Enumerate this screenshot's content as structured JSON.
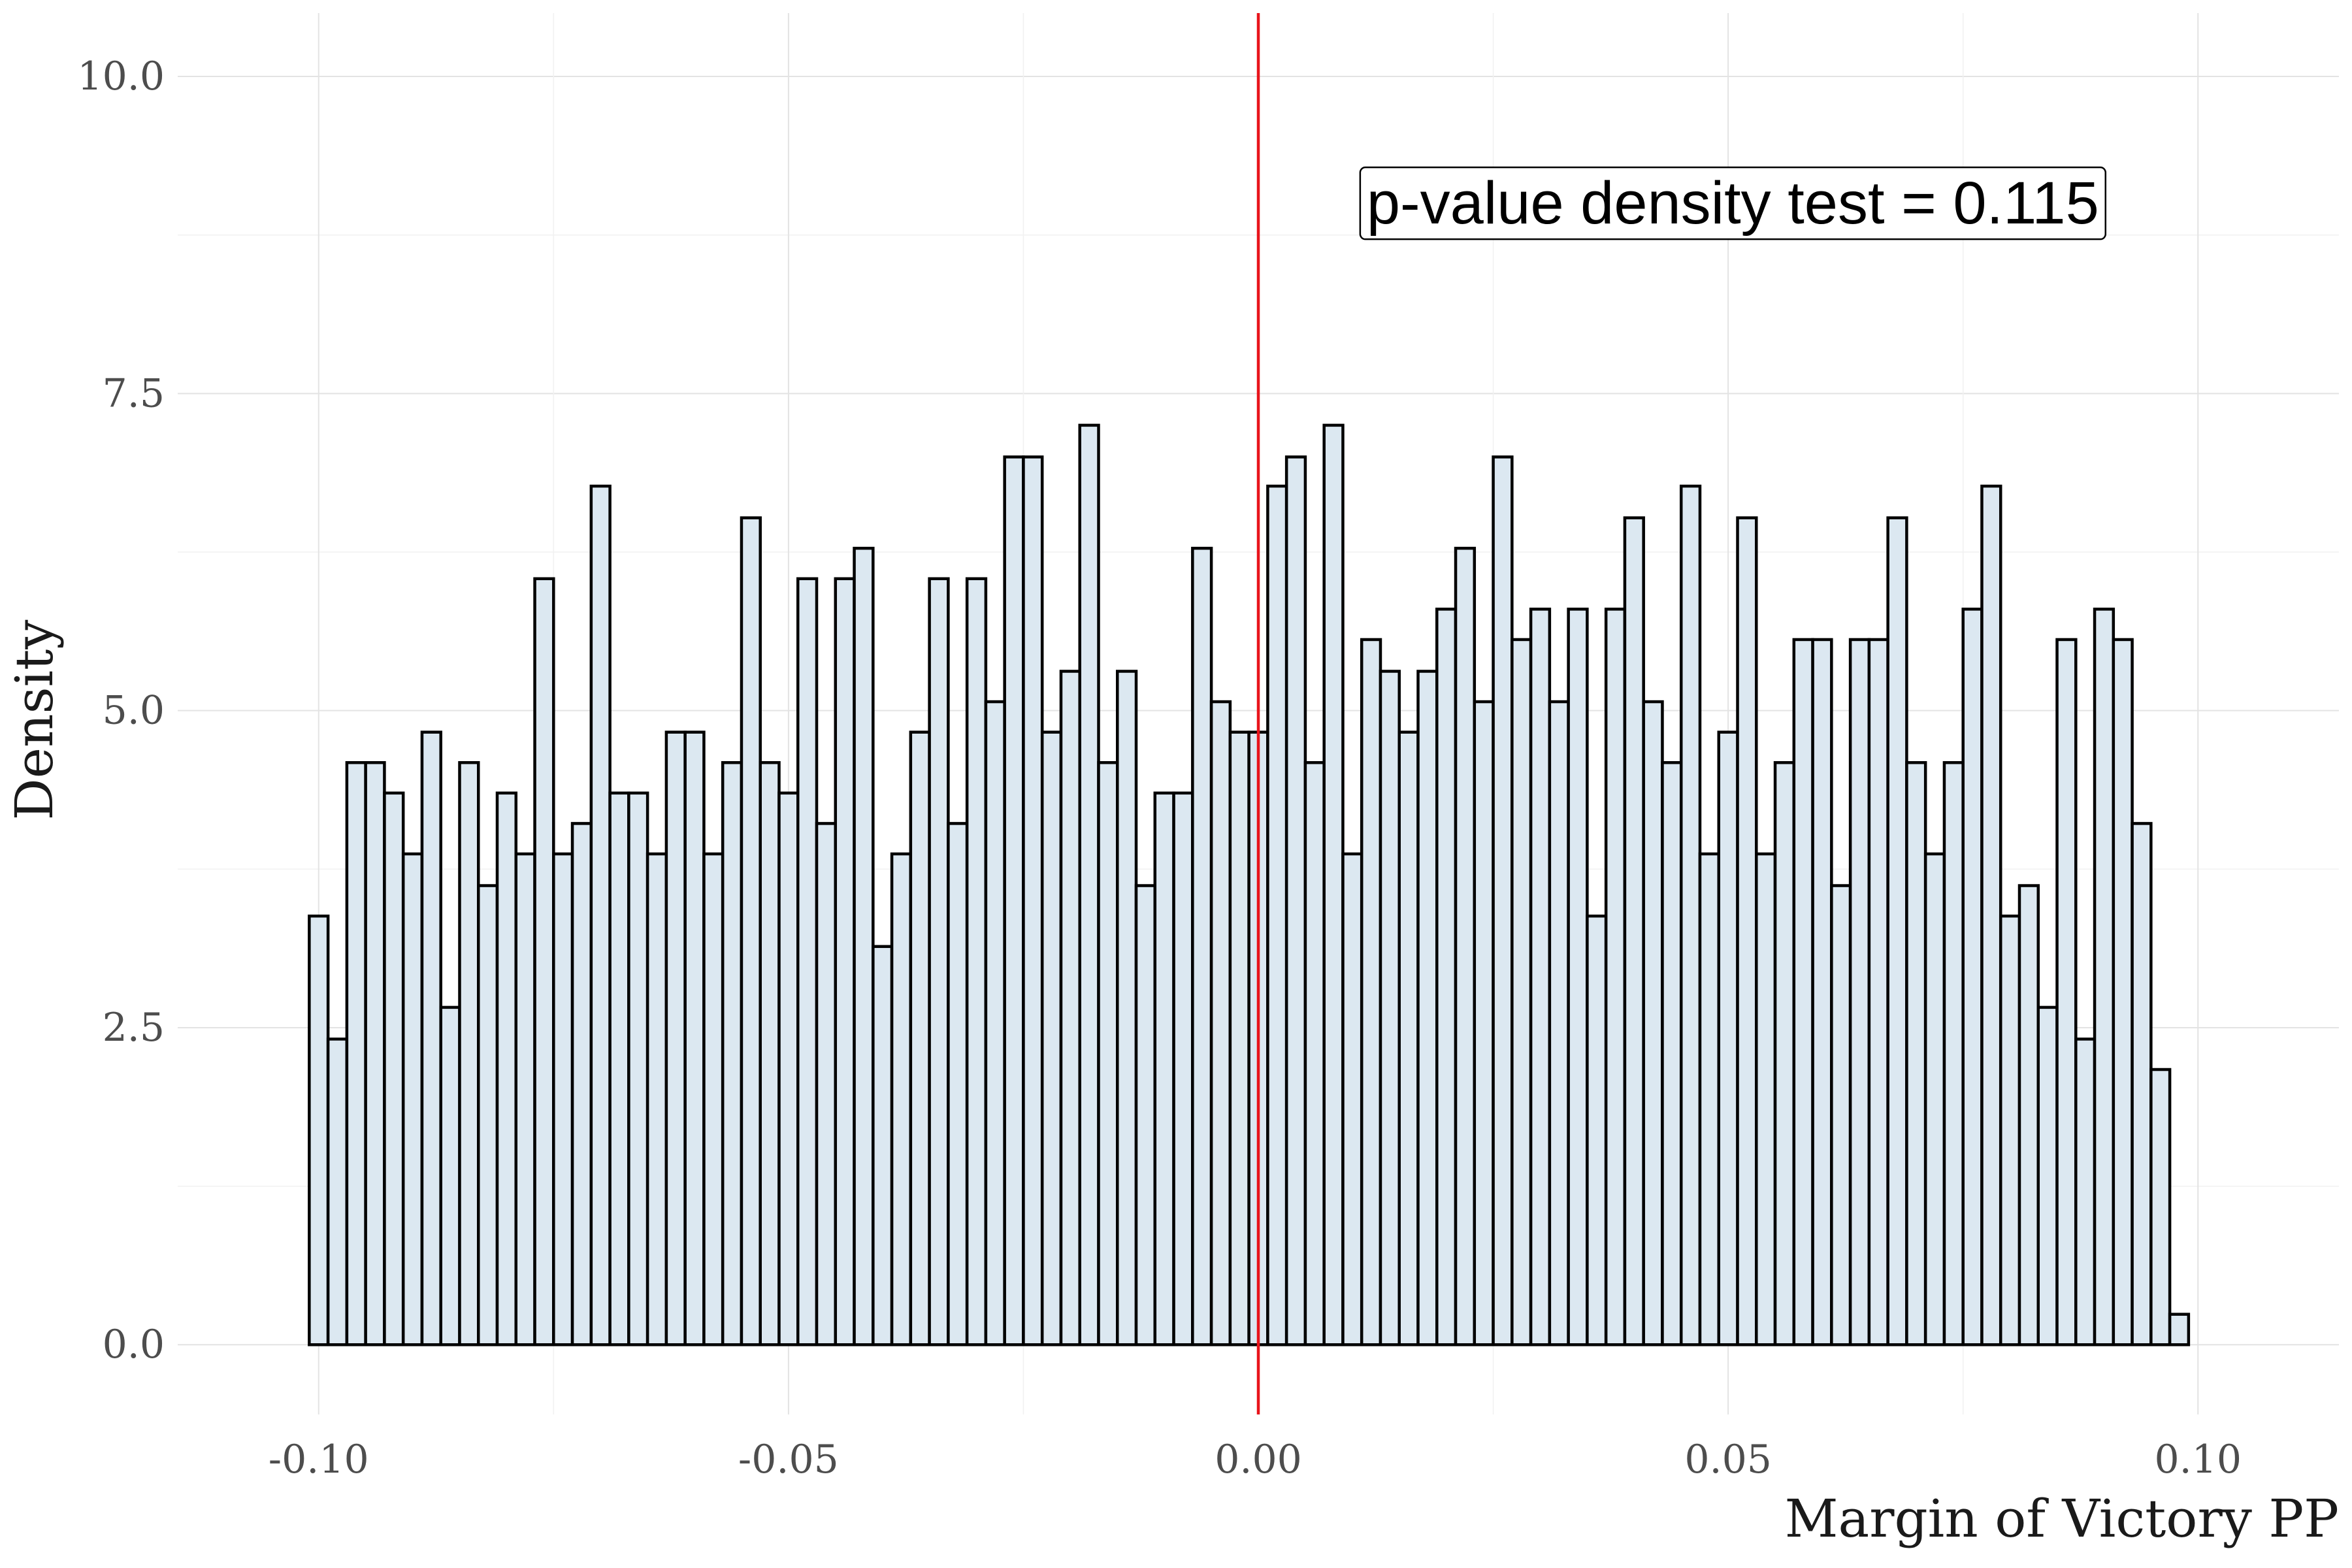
{
  "chart_data": {
    "type": "bar",
    "xlabel": "Margin of Victory PP",
    "ylabel": "Density",
    "xlim": [
      -0.115,
      0.115
    ],
    "ylim": [
      -0.55,
      10.5
    ],
    "x_ticks": [
      -0.1,
      -0.05,
      0.0,
      0.05,
      0.1
    ],
    "x_tick_labels": [
      "-0.10",
      "-0.05",
      "0.00",
      "0.05",
      "0.10"
    ],
    "y_ticks": [
      0,
      2.5,
      5,
      7.5,
      10
    ],
    "y_tick_labels": [
      "0.0",
      "2.5",
      "5.0",
      "7.5",
      "10.0"
    ],
    "grid": true,
    "bin_start": -0.101,
    "bin_width": 0.002,
    "values": [
      3.38,
      2.41,
      4.59,
      4.59,
      4.35,
      3.87,
      4.83,
      2.66,
      4.59,
      3.62,
      4.35,
      3.87,
      6.04,
      3.87,
      4.11,
      6.77,
      4.35,
      4.35,
      3.87,
      4.83,
      4.83,
      3.87,
      4.59,
      6.52,
      4.59,
      4.35,
      6.04,
      4.11,
      6.04,
      6.28,
      3.14,
      3.87,
      4.83,
      6.04,
      4.11,
      6.04,
      5.07,
      7.0,
      7.0,
      4.83,
      5.31,
      7.25,
      4.59,
      5.31,
      3.62,
      4.35,
      4.35,
      6.28,
      5.07,
      4.83,
      4.83,
      6.77,
      7.0,
      4.59,
      7.25,
      3.87,
      5.56,
      5.31,
      4.83,
      5.31,
      5.8,
      6.28,
      5.07,
      7.0,
      5.56,
      5.8,
      5.07,
      5.8,
      3.38,
      5.8,
      6.52,
      5.07,
      4.59,
      6.77,
      3.87,
      4.83,
      6.52,
      3.87,
      4.59,
      5.56,
      5.56,
      3.62,
      5.56,
      5.56,
      6.52,
      4.59,
      3.87,
      4.59,
      5.8,
      6.77,
      3.38,
      3.62,
      2.66,
      5.56,
      2.41,
      5.8,
      5.56,
      4.11,
      2.17,
      0.24
    ],
    "reference_line_x": 0.0,
    "reference_line_color": "#e8141b",
    "bar_fill": "#dce8f1",
    "bar_outline": "#000000",
    "annotation": {
      "text": "p-value density test =  0.115",
      "x": 0.0505,
      "y": 9.0
    }
  }
}
